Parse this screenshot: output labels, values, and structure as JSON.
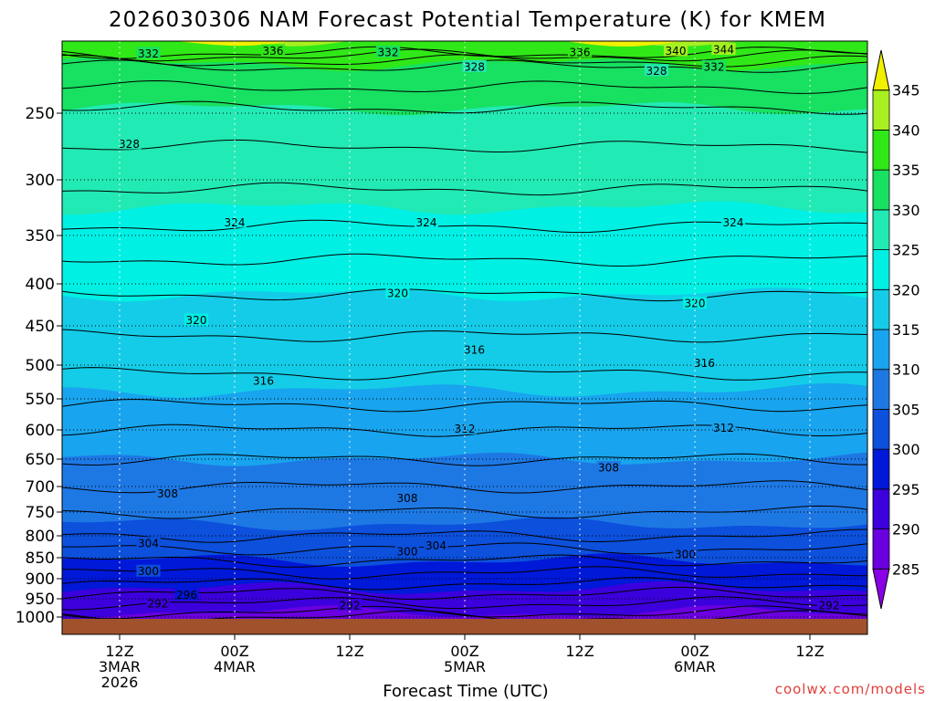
{
  "chart_data": {
    "type": "heatmap",
    "title": "2026030306 NAM Forecast Potential Temperature (K) for KMEM",
    "xlabel": "Forecast Time (UTC)",
    "ylabel": "",
    "credit": "coolwx.com/models",
    "y_ticks": [
      250,
      300,
      350,
      400,
      450,
      500,
      550,
      600,
      650,
      700,
      750,
      800,
      850,
      900,
      950,
      1000
    ],
    "y_tick_labels": [
      "250",
      "300",
      "350",
      "400",
      "450",
      "500",
      "550",
      "600",
      "650",
      "700",
      "750",
      "800",
      "850",
      "900",
      "950",
      "1000"
    ],
    "ylim": [
      1010,
      200
    ],
    "x_ticks": [
      {
        "hour": 6,
        "line1": "12Z",
        "line2": "3MAR",
        "line3": "2026"
      },
      {
        "hour": 18,
        "line1": "00Z",
        "line2": "4MAR",
        "line3": ""
      },
      {
        "hour": 30,
        "line1": "12Z",
        "line2": "",
        "line3": ""
      },
      {
        "hour": 42,
        "line1": "00Z",
        "line2": "5MAR",
        "line3": ""
      },
      {
        "hour": 54,
        "line1": "12Z",
        "line2": "",
        "line3": ""
      },
      {
        "hour": 66,
        "line1": "00Z",
        "line2": "6MAR",
        "line3": ""
      },
      {
        "hour": 78,
        "line1": "12Z",
        "line2": "",
        "line3": ""
      }
    ],
    "xlim": [
      0,
      84
    ],
    "colorbar": {
      "levels": [
        285,
        290,
        295,
        300,
        305,
        310,
        315,
        320,
        325,
        330,
        335,
        340,
        345
      ],
      "labels": [
        "285",
        "290",
        "295",
        "300",
        "305",
        "310",
        "315",
        "320",
        "325",
        "330",
        "335",
        "340",
        "345"
      ],
      "colors": [
        "#8a00e6",
        "#6a00e0",
        "#3c00dc",
        "#0018d8",
        "#0c50dc",
        "#1e78e4",
        "#18a4ee",
        "#14cce8",
        "#00f0e4",
        "#22eab4",
        "#18e060",
        "#30e818",
        "#a8f020",
        "#f0f000"
      ]
    },
    "profile": [
      {
        "p": 1000,
        "theta": 289
      },
      {
        "p": 950,
        "theta": 293
      },
      {
        "p": 900,
        "theta": 297
      },
      {
        "p": 850,
        "theta": 300.5
      },
      {
        "p": 800,
        "theta": 304
      },
      {
        "p": 750,
        "theta": 306
      },
      {
        "p": 700,
        "theta": 308
      },
      {
        "p": 650,
        "theta": 310
      },
      {
        "p": 600,
        "theta": 312
      },
      {
        "p": 550,
        "theta": 314.5
      },
      {
        "p": 500,
        "theta": 316.5
      },
      {
        "p": 450,
        "theta": 318.5
      },
      {
        "p": 400,
        "theta": 320.5
      },
      {
        "p": 350,
        "theta": 323.5
      },
      {
        "p": 300,
        "theta": 326.5
      },
      {
        "p": 250,
        "theta": 329.5
      },
      {
        "p": 215,
        "theta": 334
      },
      {
        "p": 205,
        "theta": 339
      }
    ],
    "contours": [
      {
        "label": "292",
        "x": [
          10,
          30,
          80
        ],
        "p": [
          962,
          967,
          967
        ]
      },
      {
        "label": "296",
        "x": [
          13
        ],
        "p": [
          940
        ]
      },
      {
        "label": "300",
        "x": [
          9,
          36,
          65
        ],
        "p": [
          882,
          835,
          842
        ]
      },
      {
        "label": "304",
        "x": [
          9,
          39
        ],
        "p": [
          817,
          822
        ]
      },
      {
        "label": "308",
        "x": [
          11,
          36,
          57
        ],
        "p": [
          713,
          722,
          665
        ]
      },
      {
        "label": "312",
        "x": [
          42,
          69
        ],
        "p": [
          598,
          596
        ]
      },
      {
        "label": "316",
        "x": [
          21,
          43,
          67
        ],
        "p": [
          523,
          480,
          497
        ]
      },
      {
        "label": "320",
        "x": [
          14,
          35,
          66
        ],
        "p": [
          443,
          411,
          423
        ]
      },
      {
        "label": "324",
        "x": [
          18,
          38,
          70
        ],
        "p": [
          338,
          338,
          338
        ]
      },
      {
        "label": "328",
        "x": [
          7,
          43,
          62
        ],
        "p": [
          273,
          215,
          218
        ]
      },
      {
        "label": "332",
        "x": [
          9,
          34,
          68
        ],
        "p": [
          205,
          204,
          215
        ]
      },
      {
        "label": "336",
        "x": [
          22,
          54
        ],
        "p": [
          203,
          204
        ]
      },
      {
        "label": "340",
        "x": [
          64
        ],
        "p": [
          203
        ]
      },
      {
        "label": "344",
        "x": [
          69
        ],
        "p": [
          202
        ]
      }
    ]
  }
}
